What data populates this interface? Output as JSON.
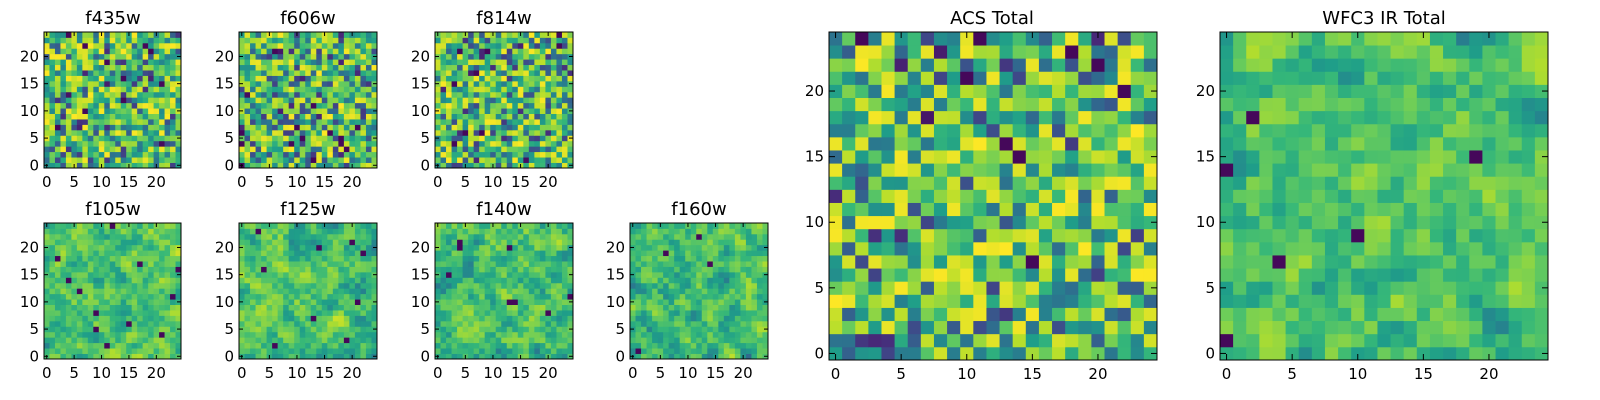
{
  "figure": {
    "background": "#ffffff",
    "colormap": "viridis"
  },
  "chart_data": [
    {
      "type": "heatmap",
      "title": "f435w",
      "xlabel": "",
      "ylabel": "",
      "rows": 25,
      "cols": 25,
      "xlim": [
        0,
        24
      ],
      "ylim": [
        0,
        24
      ],
      "xticks": [
        "0",
        "5",
        "10",
        "15",
        "20"
      ],
      "yticks": [
        "0",
        "5",
        "10",
        "15",
        "20"
      ],
      "values_note": "",
      "seed": 11,
      "smooth": 0,
      "bias": 0.15
    },
    {
      "type": "heatmap",
      "title": "f606w",
      "xlabel": "",
      "ylabel": "",
      "rows": 25,
      "cols": 25,
      "xlim": [
        0,
        24
      ],
      "ylim": [
        0,
        24
      ],
      "xticks": [
        "0",
        "5",
        "10",
        "15",
        "20"
      ],
      "yticks": [
        "0",
        "5",
        "10",
        "15",
        "20"
      ],
      "values_note": "",
      "seed": 23,
      "smooth": 0,
      "bias": 0.15
    },
    {
      "type": "heatmap",
      "title": "f814w",
      "xlabel": "",
      "ylabel": "",
      "rows": 25,
      "cols": 25,
      "xlim": [
        0,
        24
      ],
      "ylim": [
        0,
        24
      ],
      "xticks": [
        "0",
        "5",
        "10",
        "15",
        "20"
      ],
      "yticks": [
        "0",
        "5",
        "10",
        "15",
        "20"
      ],
      "values_note": "",
      "seed": 37,
      "smooth": 0,
      "bias": 0.15
    },
    {
      "type": "heatmap",
      "title": "f105w",
      "xlabel": "",
      "ylabel": "",
      "rows": 25,
      "cols": 25,
      "xlim": [
        0,
        24
      ],
      "ylim": [
        0,
        24
      ],
      "xticks": [
        "0",
        "5",
        "10",
        "15",
        "20"
      ],
      "yticks": [
        "0",
        "5",
        "10",
        "15",
        "20"
      ],
      "values_note": "",
      "seed": 41,
      "smooth": 1,
      "bias": 0.25
    },
    {
      "type": "heatmap",
      "title": "f125w",
      "xlabel": "",
      "ylabel": "",
      "rows": 25,
      "cols": 25,
      "xlim": [
        0,
        24
      ],
      "ylim": [
        0,
        24
      ],
      "xticks": [
        "0",
        "5",
        "10",
        "15",
        "20"
      ],
      "yticks": [
        "0",
        "5",
        "10",
        "15",
        "20"
      ],
      "values_note": "",
      "seed": 53,
      "smooth": 1,
      "bias": 0.2
    },
    {
      "type": "heatmap",
      "title": "f140w",
      "xlabel": "",
      "ylabel": "",
      "rows": 25,
      "cols": 25,
      "xlim": [
        0,
        24
      ],
      "ylim": [
        0,
        24
      ],
      "xticks": [
        "0",
        "5",
        "10",
        "15",
        "20"
      ],
      "yticks": [
        "0",
        "5",
        "10",
        "15",
        "20"
      ],
      "values_note": "",
      "seed": 67,
      "smooth": 1,
      "bias": 0.15
    },
    {
      "type": "heatmap",
      "title": "f160w",
      "xlabel": "",
      "ylabel": "",
      "rows": 25,
      "cols": 25,
      "xlim": [
        0,
        24
      ],
      "ylim": [
        0,
        24
      ],
      "xticks": [
        "0",
        "5",
        "10",
        "15",
        "20"
      ],
      "yticks": [
        "0",
        "5",
        "10",
        "15",
        "20"
      ],
      "values_note": "",
      "seed": 79,
      "smooth": 1,
      "bias": 0.1
    },
    {
      "type": "heatmap",
      "title": "ACS Total",
      "xlabel": "",
      "ylabel": "",
      "rows": 25,
      "cols": 25,
      "xlim": [
        0,
        24
      ],
      "ylim": [
        0,
        24
      ],
      "xticks": [
        "0",
        "5",
        "10",
        "15",
        "20"
      ],
      "yticks": [
        "0",
        "5",
        "10",
        "15",
        "20"
      ],
      "values_note": "",
      "seed": 97,
      "smooth": 0,
      "bias": 0.3
    },
    {
      "type": "heatmap",
      "title": "WFC3 IR Total",
      "xlabel": "",
      "ylabel": "",
      "rows": 25,
      "cols": 25,
      "xlim": [
        0,
        24
      ],
      "ylim": [
        0,
        24
      ],
      "xticks": [
        "0",
        "5",
        "10",
        "15",
        "20"
      ],
      "yticks": [
        "0",
        "5",
        "10",
        "15",
        "20"
      ],
      "values_note": "",
      "seed": 113,
      "smooth": 1,
      "bias": 0.2
    }
  ]
}
